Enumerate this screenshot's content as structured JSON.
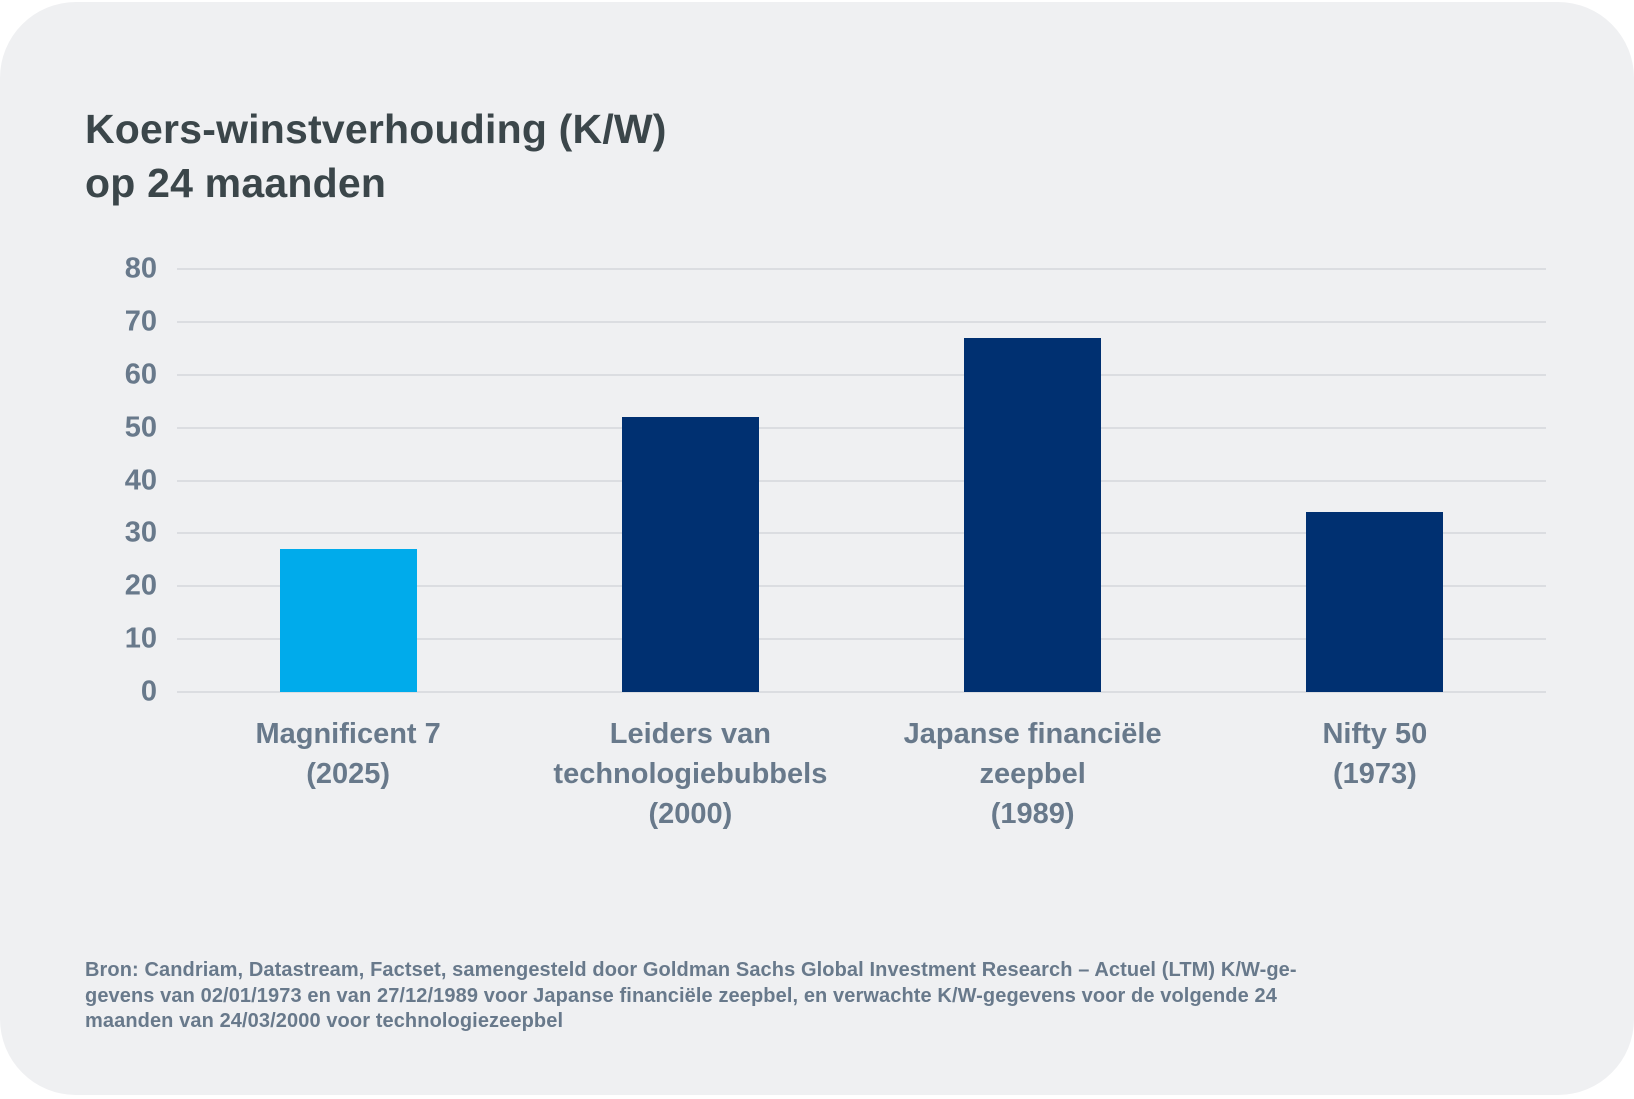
{
  "page": {
    "title": "Koers-winstverhouding (K/W)\nop 24 maanden",
    "footer": "Bron: Candriam, Datastream, Factset, samengesteld door Goldman Sachs Global Investment Research – Actuel (LTM) K/W-ge-\ngevens van 02/01/1973 en van 27/12/1989 voor Japanse financiële zeepbel, en verwachte K/W-gegevens voor de volgende 24\nmaanden van 24/03/2000 voor technologiezeepbel"
  },
  "chart_data": {
    "type": "bar",
    "title": "Koers-winstverhouding (K/W) op 24 maanden",
    "categories": [
      "Magnificent 7\n(2025)",
      "Leiders van\ntechnologiebubbels\n(2000)",
      "Japanse financiële\nzeepbel\n(1989)",
      "Nifty 50\n(1973)"
    ],
    "values": [
      27,
      52,
      67,
      34
    ],
    "bar_colors": [
      "#00ABEB",
      "#003071",
      "#003071",
      "#003071"
    ],
    "ylim": [
      0,
      80
    ],
    "yticks": [
      0,
      10,
      20,
      30,
      40,
      50,
      60,
      70,
      80
    ],
    "grid": true,
    "legend": "none",
    "xlabel": "",
    "ylabel": ""
  },
  "colors": {
    "background": "#FFFFFF",
    "card": "#EFF0F2",
    "title_text": "#3B464A",
    "axis_text": "#68798B",
    "gridline": "#DBDDE1",
    "highlight_bar": "#00ABEB",
    "navy_bar": "#003071"
  }
}
